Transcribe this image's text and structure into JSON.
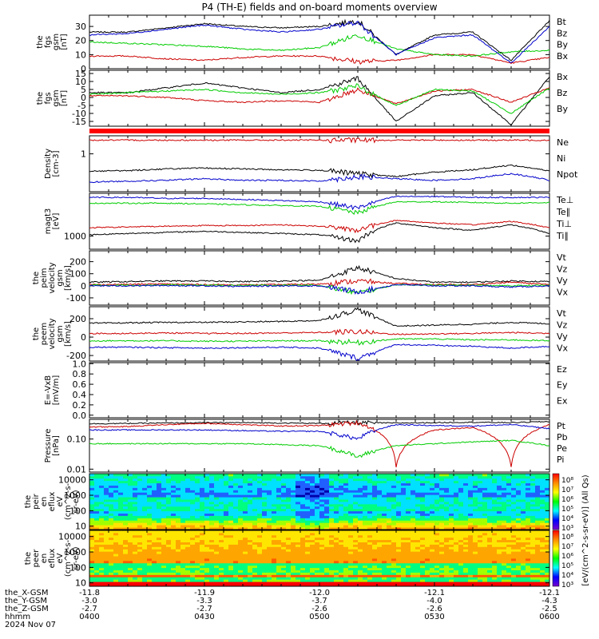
{
  "title": "P4 (TH-E) fields and on-board moments overview",
  "chart_data": [
    {
      "id": "fgs_gsm_mag",
      "type": "line",
      "ylabel": [
        "the",
        "fgs",
        "gsm",
        "[nT]"
      ],
      "yticks": [
        0,
        10,
        20,
        30
      ],
      "ylim": [
        0,
        38
      ],
      "series": [
        {
          "name": "Bt",
          "color": "#000000",
          "values": [
            26,
            26,
            29,
            32,
            30,
            29,
            30,
            34,
            10,
            24,
            26,
            6,
            34
          ]
        },
        {
          "name": "Bz",
          "color": "#cc0000",
          "values": [
            9,
            9,
            7,
            6,
            8,
            9,
            9,
            5,
            6,
            10,
            10,
            4,
            8
          ]
        },
        {
          "name": "By",
          "color": "#00cc00",
          "values": [
            19,
            18,
            17,
            16,
            14,
            13,
            15,
            24,
            14,
            10,
            9,
            12,
            13
          ]
        },
        {
          "name": "Bx",
          "color": "#0000cc",
          "values": [
            24,
            25,
            28,
            31,
            28,
            26,
            28,
            33,
            10,
            22,
            24,
            4,
            30
          ]
        }
      ]
    },
    {
      "id": "fgs_gsm_comp",
      "type": "line",
      "ylabel": [
        "the",
        "fgs",
        "gsm",
        "[nT]"
      ],
      "yticks": [
        -15,
        -10,
        -5,
        0,
        5,
        10,
        15
      ],
      "ylim": [
        -18,
        17
      ],
      "series": [
        {
          "name": "Bx",
          "color": "#000000",
          "values": [
            3,
            3,
            6,
            9,
            6,
            3,
            5,
            12,
            -15,
            1,
            3,
            -17,
            13
          ]
        },
        {
          "name": "Bz",
          "color": "#cc0000",
          "values": [
            1,
            1,
            0,
            -2,
            -3,
            -2,
            -3,
            5,
            -4,
            4,
            5,
            -3,
            6
          ]
        },
        {
          "name": "By",
          "color": "#00cc00",
          "values": [
            2,
            3,
            4,
            5,
            3,
            2,
            3,
            7,
            -5,
            5,
            4,
            -10,
            6
          ]
        }
      ]
    },
    {
      "id": "density",
      "type": "line",
      "ylabel": [
        "Density",
        "[cm-3]"
      ],
      "yticks": [
        1
      ],
      "ylim": [
        0.1,
        3
      ],
      "log": true,
      "series": [
        {
          "name": "Ne",
          "color": "#cc0000",
          "values": [
            2.3,
            2.3,
            2.3,
            2.3,
            2.3,
            2.3,
            2.3,
            2.3,
            2.3,
            2.3,
            2.3,
            2.3,
            2.3
          ]
        },
        {
          "name": "Ni",
          "color": "#000000",
          "values": [
            0.35,
            0.36,
            0.4,
            0.42,
            0.4,
            0.38,
            0.37,
            0.3,
            0.25,
            0.33,
            0.38,
            0.5,
            0.35
          ]
        },
        {
          "name": "Npot",
          "color": "#0000cc",
          "values": [
            0.18,
            0.19,
            0.2,
            0.22,
            0.2,
            0.2,
            0.19,
            0.25,
            0.22,
            0.2,
            0.22,
            0.3,
            0.2
          ]
        }
      ]
    },
    {
      "id": "temperature",
      "type": "line",
      "ylabel": [
        "magt3",
        "[eV]"
      ],
      "yticks": [
        1000
      ],
      "ylim": [
        400,
        20000
      ],
      "log": true,
      "series": [
        {
          "name": "Te⊥",
          "color": "#cc0000",
          "values": [
            1800,
            1900,
            2000,
            2100,
            2100,
            2200,
            2000,
            1500,
            3000,
            2500,
            2200,
            2800,
            1800
          ]
        },
        {
          "name": "Te∥",
          "color": "#000000",
          "values": [
            1100,
            1200,
            1300,
            1400,
            1300,
            1200,
            1100,
            700,
            2500,
            1800,
            1500,
            2200,
            1200
          ]
        },
        {
          "name": "Ti⊥",
          "color": "#0000cc",
          "values": [
            15000,
            15000,
            14000,
            14000,
            13000,
            12000,
            11000,
            7000,
            16000,
            16000,
            15000,
            15000,
            15000
          ]
        },
        {
          "name": "Ti∥",
          "color": "#00cc00",
          "values": [
            10000,
            10000,
            10000,
            9500,
            9000,
            8500,
            8000,
            5000,
            11000,
            11000,
            10500,
            10000,
            10500
          ]
        }
      ]
    },
    {
      "id": "peim_velocity",
      "type": "line",
      "ylabel": [
        "the",
        "peim",
        "velocity",
        "gsm",
        "[km/s]"
      ],
      "yticks": [
        -100,
        0,
        100,
        200
      ],
      "ylim": [
        -160,
        290
      ],
      "series": [
        {
          "name": "Vt",
          "color": "#000000",
          "values": [
            30,
            35,
            40,
            40,
            35,
            40,
            45,
            150,
            60,
            30,
            30,
            40,
            35
          ]
        },
        {
          "name": "Vz",
          "color": "#cc0000",
          "values": [
            10,
            12,
            15,
            10,
            8,
            10,
            15,
            40,
            20,
            10,
            10,
            30,
            10
          ]
        },
        {
          "name": "Vy",
          "color": "#00cc00",
          "values": [
            5,
            5,
            8,
            5,
            3,
            5,
            5,
            -60,
            10,
            5,
            5,
            0,
            5
          ]
        },
        {
          "name": "Vx",
          "color": "#0000cc",
          "values": [
            0,
            0,
            2,
            0,
            -5,
            0,
            0,
            -50,
            10,
            0,
            0,
            -10,
            0
          ]
        }
      ]
    },
    {
      "id": "peem_velocity",
      "type": "line",
      "ylabel": [
        "the",
        "peem",
        "velocity",
        "gsm",
        "[km/s]"
      ],
      "yticks": [
        -200,
        0,
        200
      ],
      "ylim": [
        -260,
        330
      ],
      "series": [
        {
          "name": "Vt",
          "color": "#000000",
          "values": [
            150,
            155,
            160,
            160,
            165,
            170,
            180,
            300,
            120,
            130,
            140,
            160,
            145
          ]
        },
        {
          "name": "Vz",
          "color": "#cc0000",
          "values": [
            40,
            40,
            45,
            40,
            40,
            45,
            50,
            60,
            30,
            35,
            40,
            50,
            40
          ]
        },
        {
          "name": "Vy",
          "color": "#00cc00",
          "values": [
            -40,
            -40,
            -40,
            -45,
            -45,
            -40,
            -40,
            -60,
            -20,
            -20,
            -30,
            -30,
            -40
          ]
        },
        {
          "name": "Vx",
          "color": "#0000cc",
          "values": [
            -110,
            -110,
            -115,
            -120,
            -115,
            -110,
            -120,
            -230,
            -80,
            -90,
            -100,
            -120,
            -100
          ]
        }
      ]
    },
    {
      "id": "efield",
      "type": "line",
      "ylabel": [
        "E=-VxB",
        "[mV/m]"
      ],
      "yticks": [
        0.0,
        0.2,
        0.4,
        0.6,
        0.8,
        1.0
      ],
      "ylim": [
        -0.05,
        1.02
      ],
      "series": [
        {
          "name": "Ez",
          "color": "#cc0000",
          "values": []
        },
        {
          "name": "Ey",
          "color": "#00cc00",
          "values": []
        },
        {
          "name": "Ex",
          "color": "#0000cc",
          "values": []
        }
      ]
    },
    {
      "id": "pressure",
      "type": "line",
      "ylabel": [
        "Pressure",
        "[nPa]"
      ],
      "yticks": [
        0.01,
        0.1
      ],
      "ylim": [
        0.008,
        0.45
      ],
      "log": true,
      "series": [
        {
          "name": "Pt",
          "color": "#000000",
          "values": [
            0.32,
            0.33,
            0.34,
            0.35,
            0.35,
            0.34,
            0.33,
            0.35,
            0.34,
            0.35,
            0.36,
            0.35,
            0.38
          ]
        },
        {
          "name": "Pb",
          "color": "#cc0000",
          "values": [
            0.25,
            0.26,
            0.3,
            0.33,
            0.3,
            0.27,
            0.28,
            0.35,
            0.012,
            0.2,
            0.24,
            0.012,
            0.3
          ]
        },
        {
          "name": "Pe",
          "color": "#00cc00",
          "values": [
            0.07,
            0.07,
            0.07,
            0.07,
            0.07,
            0.065,
            0.06,
            0.025,
            0.06,
            0.07,
            0.08,
            0.09,
            0.06
          ]
        },
        {
          "name": "Pi",
          "color": "#0000cc",
          "values": [
            0.2,
            0.2,
            0.2,
            0.2,
            0.19,
            0.18,
            0.18,
            0.1,
            0.3,
            0.28,
            0.27,
            0.3,
            0.22
          ]
        }
      ]
    },
    {
      "id": "peir_spectrogram",
      "type": "heatmap",
      "ylabel": [
        "the",
        "peir",
        "en",
        "eflux",
        "eV",
        "(cm^2-s-",
        "sr-eV)"
      ],
      "yticks": [
        10,
        100,
        1000,
        10000
      ],
      "ylim": [
        6,
        25000
      ],
      "log": true
    },
    {
      "id": "peer_spectrogram",
      "type": "heatmap",
      "ylabel": [
        "the",
        "peer",
        "en",
        "eflux",
        "eV",
        "(cm^2-s-",
        "sr-eV)"
      ],
      "yticks": [
        10,
        100,
        1000,
        10000
      ],
      "ylim": [
        6,
        25000
      ],
      "log": true
    }
  ],
  "colorbar": {
    "label": "[eV/(cm^2-s-sr-eV)] (All Qs)",
    "upper_ticks": [
      "10⁸",
      "10⁷",
      "10⁶",
      "10⁵",
      "10⁴",
      "10³"
    ],
    "lower_ticks": [
      "10⁸",
      "10⁷",
      "10⁶",
      "10⁵",
      "10⁴",
      "10³"
    ],
    "colors": [
      "#ff0000",
      "#ff8c00",
      "#ffff00",
      "#00ff00",
      "#00ffff",
      "#0000ff",
      "#7700cc"
    ]
  },
  "xaxis": {
    "row_labels": [
      "the_X-GSM",
      "the_Y-GSM",
      "the_Z-GSM",
      "hhmm",
      "2024 Nov 07"
    ],
    "columns": [
      [
        "-11.8",
        "-3.0",
        "-2.7",
        "0400"
      ],
      [
        "-11.9",
        "-3.3",
        "-2.7",
        "0430"
      ],
      [
        "-12.0",
        "-3.7",
        "-2.6",
        "0500"
      ],
      [
        "-12.1",
        "-4.0",
        "-2.6",
        "0530"
      ],
      [
        "-12.1",
        "-4.3",
        "-2.5",
        "0600"
      ]
    ]
  }
}
